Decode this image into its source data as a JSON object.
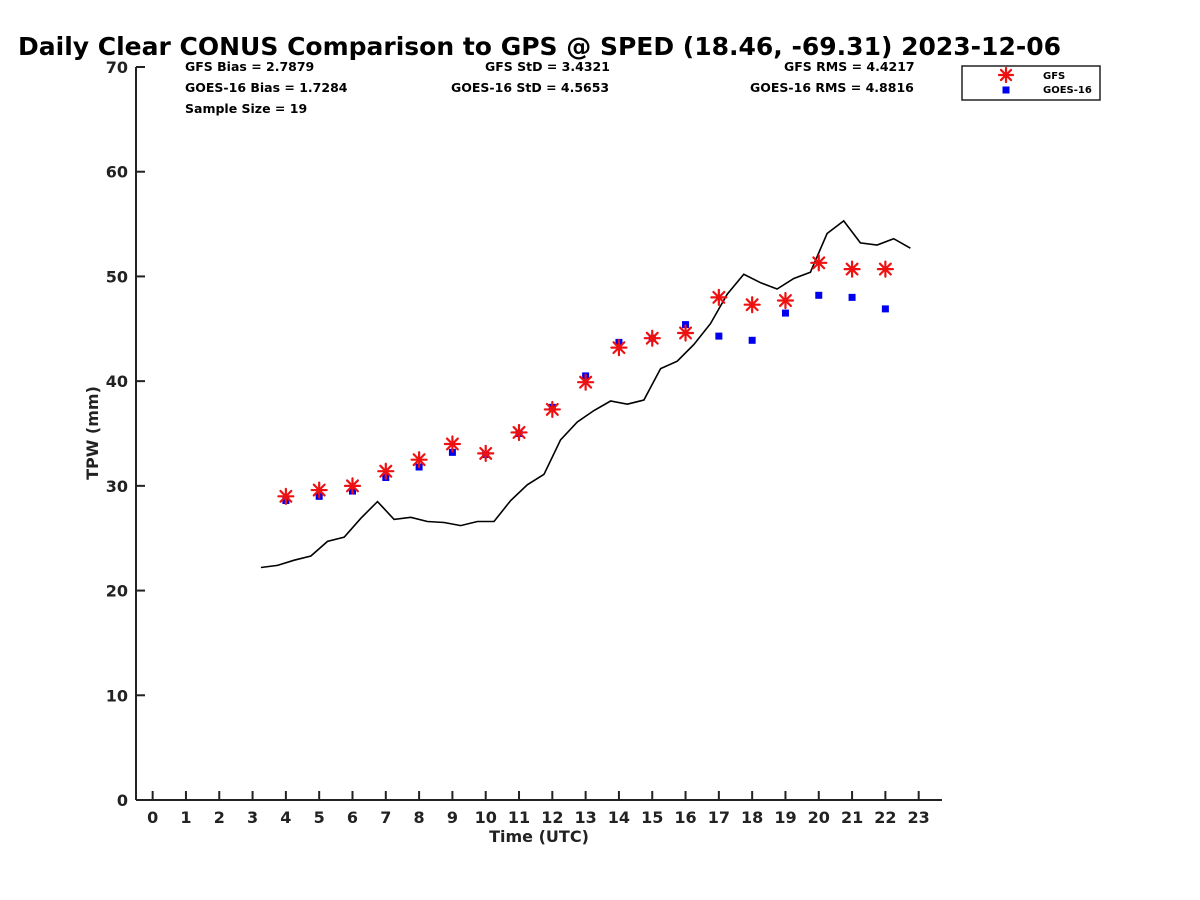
{
  "chart_data": {
    "type": "line",
    "title": "Daily Clear CONUS Comparison to GPS @ SPED (18.46, -69.31) 2023-12-06",
    "xlabel": "Time (UTC)",
    "ylabel": "TPW (mm)",
    "xlim": [
      -0.5,
      23.7
    ],
    "ylim": [
      0,
      70
    ],
    "x_ticks": [
      "0",
      "1",
      "2",
      "3",
      "4",
      "5",
      "6",
      "7",
      "8",
      "9",
      "10",
      "11",
      "12",
      "13",
      "14",
      "15",
      "16",
      "17",
      "18",
      "19",
      "20",
      "21",
      "22",
      "23"
    ],
    "y_ticks": [
      "0",
      "10",
      "20",
      "30",
      "40",
      "50",
      "60",
      "70"
    ],
    "grid": false,
    "legend_position": "top-right",
    "stats": [
      {
        "label": "GFS Bias = 2.7879"
      },
      {
        "label": "GFS StD = 3.4321"
      },
      {
        "label": "GFS RMS = 4.4217"
      },
      {
        "label": "GOES-16 Bias = 1.7284"
      },
      {
        "label": "GOES-16 StD = 4.5653"
      },
      {
        "label": "GOES-16 RMS = 4.8816"
      },
      {
        "label": "Sample Size = 19"
      }
    ],
    "series": [
      {
        "kind": "line",
        "color": "#000000",
        "x": [
          3.25,
          3.75,
          4.25,
          4.75,
          5.25,
          5.75,
          6.25,
          6.75,
          7.25,
          7.75,
          8.25,
          8.75,
          9.25,
          9.75,
          10.25,
          10.75,
          11.25,
          11.75,
          12.25,
          12.75,
          13.25,
          13.75,
          14.25,
          14.75,
          15.25,
          15.75,
          16.25,
          16.75,
          17.25,
          17.75,
          18.25,
          18.75,
          19.25,
          19.75,
          20.25,
          20.75,
          21.25,
          21.75,
          22.25,
          22.75
        ],
        "values": [
          22.2,
          22.4,
          22.9,
          23.3,
          24.7,
          25.1,
          26.9,
          28.5,
          26.8,
          27.0,
          26.6,
          26.5,
          26.2,
          26.6,
          26.6,
          28.6,
          30.1,
          31.1,
          34.4,
          36.1,
          37.2,
          38.1,
          37.8,
          38.2,
          41.2,
          41.9,
          43.5,
          45.5,
          48.3,
          50.2,
          49.4,
          48.8,
          49.8,
          50.4,
          54.1,
          55.3,
          53.2,
          53.0,
          53.6,
          52.7
        ]
      },
      {
        "kind": "scatter",
        "name": "GFS",
        "marker": "asterisk",
        "color": "#ee1111",
        "x": [
          4,
          5,
          6,
          7,
          8,
          9,
          10,
          11,
          12,
          13,
          14,
          15,
          16,
          17,
          18,
          19,
          20,
          21,
          22
        ],
        "values": [
          29.0,
          29.6,
          30.0,
          31.4,
          32.5,
          34.0,
          33.1,
          35.1,
          37.3,
          39.9,
          43.2,
          44.1,
          44.6,
          48.0,
          47.3,
          47.7,
          51.3,
          50.7,
          50.7
        ]
      },
      {
        "kind": "scatter",
        "name": "GOES-16",
        "marker": "square",
        "color": "#0000ee",
        "x": [
          4,
          5,
          6,
          7,
          8,
          9,
          10,
          11,
          12,
          13,
          14,
          15,
          16,
          17,
          18,
          19,
          20,
          21,
          22
        ],
        "values": [
          28.6,
          29.0,
          29.5,
          30.8,
          31.8,
          33.2,
          33.0,
          35.0,
          37.5,
          40.5,
          43.7,
          44.1,
          45.4,
          44.3,
          43.9,
          46.5,
          48.2,
          48.0,
          46.9
        ]
      }
    ]
  }
}
